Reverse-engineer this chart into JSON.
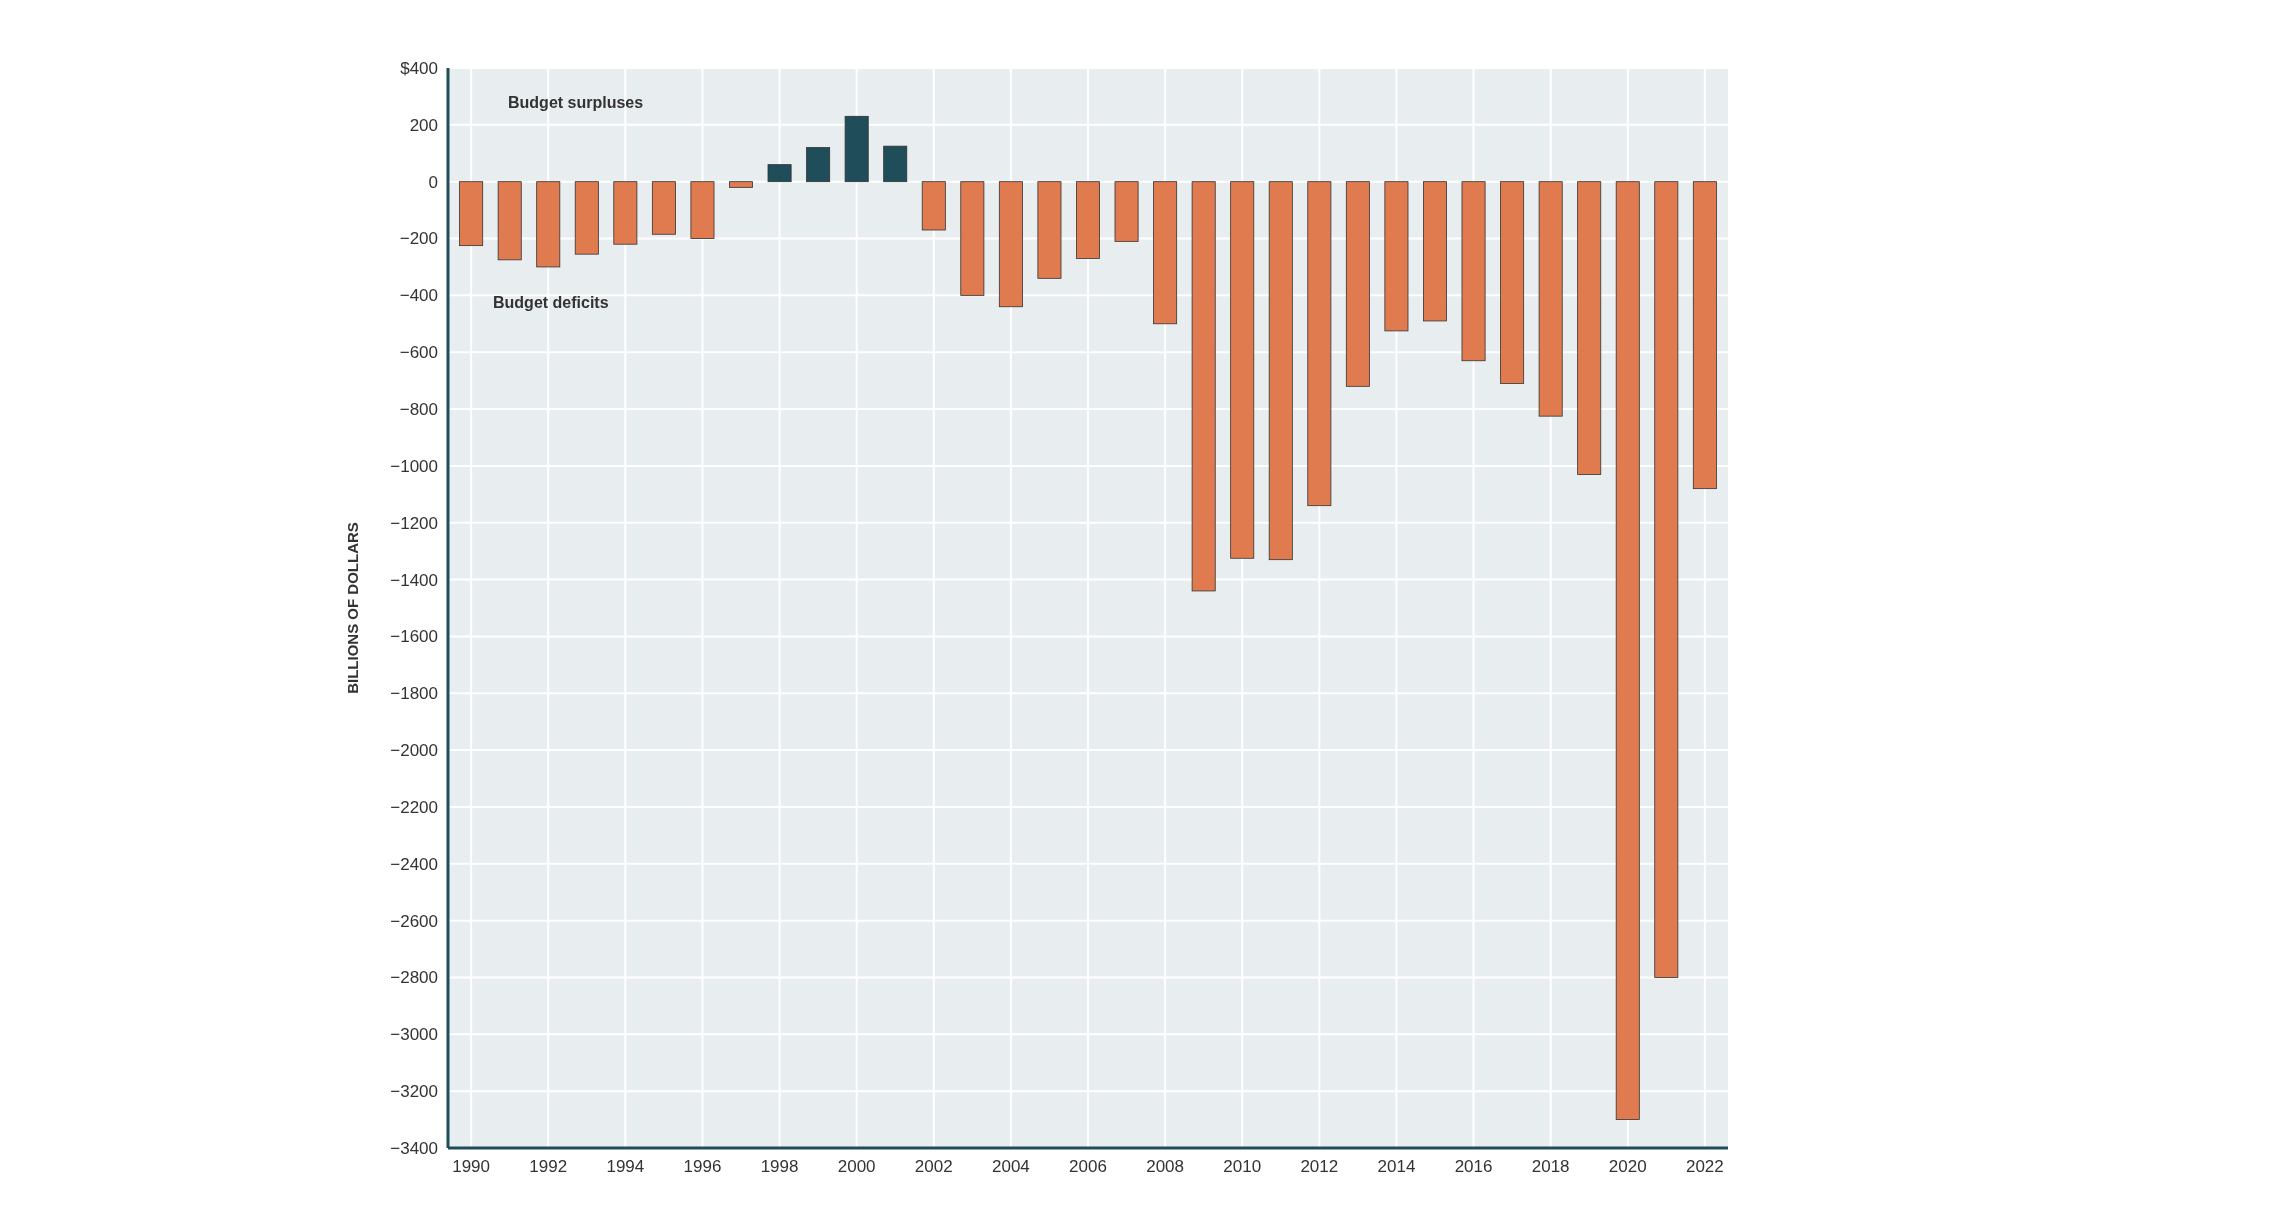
{
  "chart_data": {
    "type": "bar",
    "ylabel": "BILLIONS OF DOLLARS",
    "x": [
      1990,
      1991,
      1992,
      1993,
      1994,
      1995,
      1996,
      1997,
      1998,
      1999,
      2000,
      2001,
      2002,
      2003,
      2004,
      2005,
      2006,
      2007,
      2008,
      2009,
      2010,
      2011,
      2012,
      2013,
      2014,
      2015,
      2016,
      2017,
      2018,
      2019,
      2020,
      2021,
      2022
    ],
    "values": [
      -225,
      -275,
      -300,
      -255,
      -220,
      -185,
      -200,
      -20,
      60,
      120,
      230,
      125,
      -170,
      -400,
      -440,
      -340,
      -270,
      -210,
      -500,
      -1440,
      -1325,
      -1330,
      -1140,
      -720,
      -525,
      -490,
      -630,
      -710,
      -825,
      -1030,
      -3300,
      -2800,
      -1080
    ],
    "colors": [
      "#e07b4f",
      "#e07b4f",
      "#e07b4f",
      "#e07b4f",
      "#e07b4f",
      "#e07b4f",
      "#e07b4f",
      "#e07b4f",
      "#1f4e5a",
      "#1f4e5a",
      "#1f4e5a",
      "#1f4e5a",
      "#e07b4f",
      "#e07b4f",
      "#e07b4f",
      "#e07b4f",
      "#e07b4f",
      "#e07b4f",
      "#e07b4f",
      "#e07b4f",
      "#e07b4f",
      "#e07b4f",
      "#e07b4f",
      "#e07b4f",
      "#e07b4f",
      "#e07b4f",
      "#e07b4f",
      "#e07b4f",
      "#e07b4f",
      "#e07b4f",
      "#e07b4f",
      "#e07b4f",
      "#e07b4f"
    ],
    "xlim": [
      1989.4,
      2022.6
    ],
    "xticks": [
      1990,
      1992,
      1994,
      1996,
      1998,
      2000,
      2002,
      2004,
      2006,
      2008,
      2010,
      2012,
      2014,
      2016,
      2018,
      2020,
      2022
    ],
    "ylim": [
      -3400,
      400
    ],
    "yticks": [
      {
        "value": 400,
        "label": "$400"
      },
      200,
      0,
      {
        "value": -200,
        "label": "−200"
      },
      {
        "value": -400,
        "label": "−400"
      },
      {
        "value": -600,
        "label": "−600"
      },
      {
        "value": -800,
        "label": "−800"
      },
      {
        "value": -1000,
        "label": "−1000"
      },
      {
        "value": -1200,
        "label": "−1200"
      },
      {
        "value": -1400,
        "label": "−1400"
      },
      {
        "value": -1600,
        "label": "−1600"
      },
      {
        "value": -1800,
        "label": "−1800"
      },
      {
        "value": -2000,
        "label": "−2000"
      },
      {
        "value": -2200,
        "label": "−2200"
      },
      {
        "value": -2400,
        "label": "−2400"
      },
      {
        "value": -2600,
        "label": "−2600"
      },
      {
        "value": -2800,
        "label": "−2800"
      },
      {
        "value": -3000,
        "label": "−3000"
      },
      {
        "value": -3200,
        "label": "−3200"
      },
      {
        "value": -3400,
        "label": "−3400"
      }
    ],
    "grid": true,
    "annotations": [
      "Budget surpluses",
      "Budget deficits"
    ]
  }
}
